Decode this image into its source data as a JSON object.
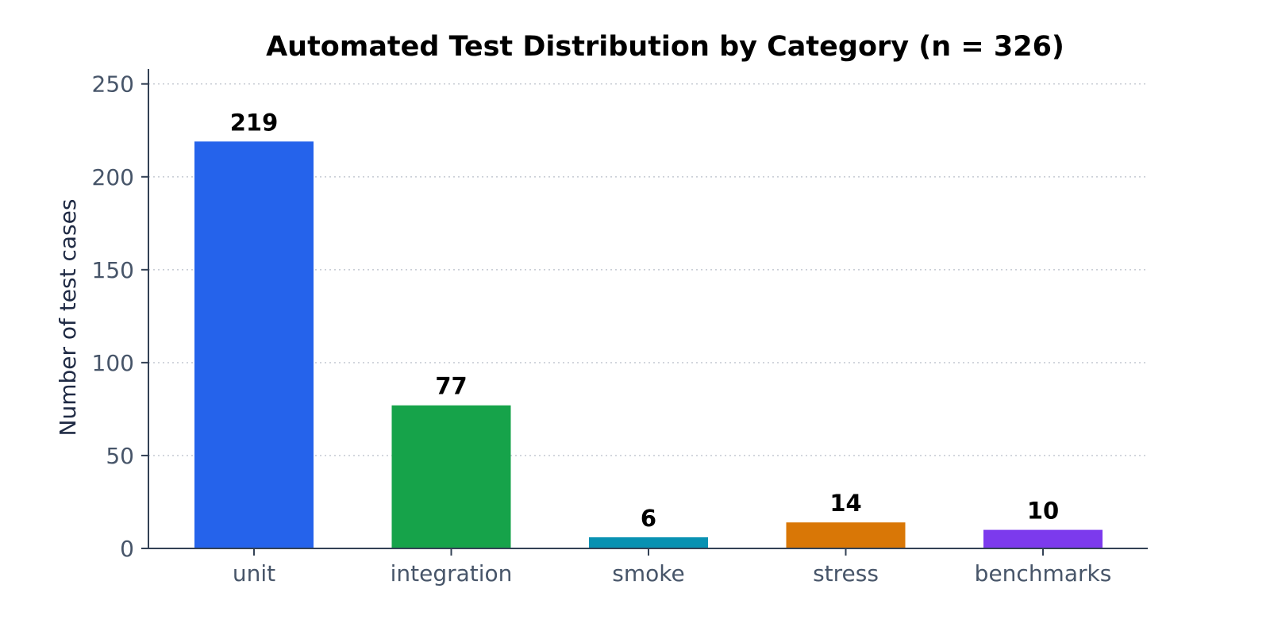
{
  "chart_data": {
    "type": "bar",
    "title": "Automated Test Distribution by Category (n = 326)",
    "xlabel": "",
    "ylabel": "Number of test cases",
    "categories": [
      "unit",
      "integration",
      "smoke",
      "stress",
      "benchmarks"
    ],
    "values": [
      219,
      77,
      6,
      14,
      10
    ],
    "data_labels": [
      "219",
      "77",
      "6",
      "14",
      "10"
    ],
    "colors": [
      "#2563eb",
      "#16a34a",
      "#0891b2",
      "#d97706",
      "#7c3aed"
    ],
    "ylim": [
      0,
      258
    ],
    "yticks": [
      0,
      50,
      100,
      150,
      200,
      250
    ],
    "ytick_labels": [
      "0",
      "50",
      "100",
      "150",
      "200",
      "250"
    ],
    "grid": "y-dotted",
    "legend": "none"
  }
}
